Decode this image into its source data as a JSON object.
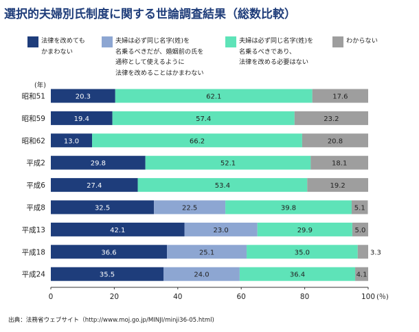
{
  "title": "選択的夫婦別氏制度に関する世論調査結果（総数比較）",
  "legend": [
    {
      "lines": [
        "法律を改めても",
        "かまわない"
      ],
      "color": "#1e3d7b"
    },
    {
      "lines": [
        "夫婦は必ず同じ名字(姓)を",
        "名乗るべきだが、婚姻前の氏を",
        "通称として使えるように",
        "法律を改めることはかまわない"
      ],
      "color": "#8da6d2"
    },
    {
      "lines": [
        "夫婦は必ず同じ名字(姓)を",
        "名乗るべきであり、",
        "法律を改める必要はない"
      ],
      "color": "#5ee3b8"
    },
    {
      "lines": [
        "わからない"
      ],
      "color": "#9e9e9e"
    }
  ],
  "source": "出典：法務省ウェブサイト（http://www.moj.go.jp/MINJI/minji36-05.html)",
  "chart_data": {
    "type": "bar",
    "orientation": "horizontal",
    "stacked": true,
    "ylabel": "(年)",
    "xlim": [
      0,
      100
    ],
    "xticks": [
      "0",
      "20",
      "40",
      "60",
      "80",
      "100"
    ],
    "xunit": "(％)",
    "categories": [
      "昭和51",
      "昭和59",
      "昭和62",
      "平成2",
      "平成6",
      "平成8",
      "平成13",
      "平成18",
      "平成24"
    ],
    "series": [
      {
        "name": "法律を改めてもかまわない",
        "color": "#1e3d7b",
        "label_color": "#ffffff",
        "values": [
          20.3,
          19.4,
          13.0,
          29.8,
          27.4,
          32.5,
          42.1,
          36.6,
          35.5
        ],
        "labels": [
          "20.3",
          "19.4",
          "13.0",
          "29.8",
          "27.4",
          "32.5",
          "42.1",
          "36.6",
          "35.5"
        ]
      },
      {
        "name": "夫婦は必ず同じ名字(姓)を名乗るべきだが、婚姻前の氏を通称として使えるように法律を改めることはかまわない",
        "color": "#8da6d2",
        "label_color": "#222222",
        "values": [
          0,
          0,
          0,
          0,
          0,
          22.5,
          23.0,
          25.1,
          24.0
        ],
        "labels": [
          "",
          "",
          "",
          "",
          "",
          "22.5",
          "23.0",
          "25.1",
          "24.0"
        ]
      },
      {
        "name": "夫婦は必ず同じ名字(姓)を名乗るべきであり、法律を改める必要はない",
        "color": "#5ee3b8",
        "label_color": "#222222",
        "values": [
          62.1,
          57.4,
          66.2,
          52.1,
          53.4,
          39.8,
          29.9,
          35.0,
          36.4
        ],
        "labels": [
          "62.1",
          "57.4",
          "66.2",
          "52.1",
          "53.4",
          "39.8",
          "29.9",
          "35.0",
          "36.4"
        ]
      },
      {
        "name": "わからない",
        "color": "#9e9e9e",
        "label_color": "#222222",
        "values": [
          17.6,
          23.2,
          20.8,
          18.1,
          19.2,
          5.1,
          5.0,
          3.3,
          4.1
        ],
        "labels": [
          "17.6",
          "23.2",
          "20.8",
          "18.1",
          "19.2",
          "5.1",
          "5.0",
          "3.3",
          "4.1"
        ]
      }
    ]
  }
}
